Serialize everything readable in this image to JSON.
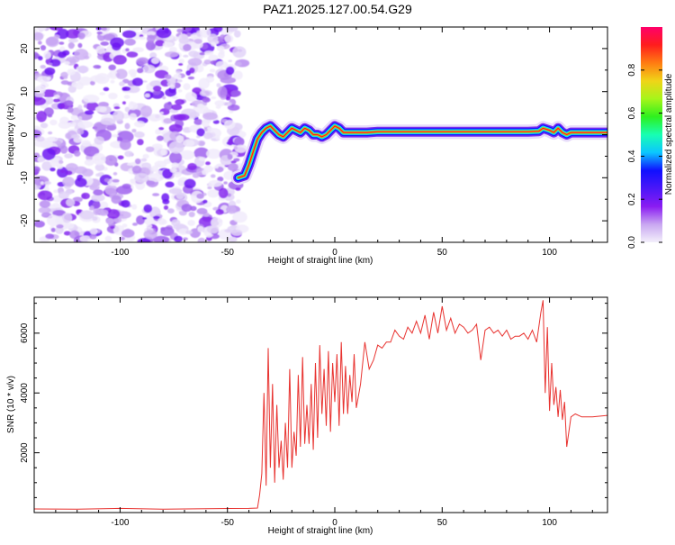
{
  "page": {
    "title": "PAZ1.2025.127.00.54.G29"
  },
  "colors": {
    "snr_line": "#e8322f",
    "axis": "#000000",
    "colorbar": [
      "#f3f0fb",
      "#c9a7f1",
      "#8a1cf2",
      "#4b17f8",
      "#1010ff",
      "#0bc6ff",
      "#18ffb2",
      "#2ef01e",
      "#a6f51a",
      "#f0d418",
      "#ff7b12",
      "#ff1d1d",
      "#ff006a"
    ]
  },
  "chart_data": [
    {
      "type": "heatmap",
      "xlabel": "Height of straight line (km)",
      "ylabel": "Frequency (Hz)",
      "xlim": [
        -140,
        127
      ],
      "ylim": [
        -25,
        25
      ],
      "x_ticks": [
        -100,
        -50,
        0,
        50,
        100
      ],
      "x_tick_labels": [
        "-100",
        "-50",
        "0",
        "50",
        "100"
      ],
      "y_ticks": [
        -20,
        -10,
        0,
        10,
        20
      ],
      "y_tick_labels": [
        "-20",
        "-10",
        "0",
        "10",
        "20"
      ],
      "noise_region_x": [
        -140,
        -43
      ],
      "ridge": {
        "x": [
          -45,
          -42,
          -40,
          -38,
          -36,
          -34,
          -32,
          -30,
          -28,
          -26,
          -24,
          -22,
          -20,
          -18,
          -16,
          -14,
          -12,
          -10,
          -8,
          -6,
          -4,
          -2,
          0,
          2,
          4,
          6,
          8,
          10,
          15,
          20,
          30,
          40,
          50,
          60,
          70,
          80,
          90,
          95,
          97,
          100,
          102,
          104,
          106,
          108,
          110,
          115,
          120,
          127
        ],
        "y": [
          -10,
          -9.5,
          -7,
          -4,
          -1,
          0.5,
          1.5,
          2,
          1,
          0,
          -0.5,
          0.5,
          1.5,
          1,
          0.5,
          1.5,
          1,
          0,
          0,
          -0.5,
          0,
          1,
          2,
          1.5,
          0.5,
          0.5,
          0.5,
          0.5,
          0.5,
          0.7,
          0.7,
          0.7,
          0.7,
          0.7,
          0.7,
          0.7,
          0.7,
          0.8,
          1.5,
          1,
          0.5,
          1.5,
          0.5,
          0,
          0.5,
          0.5,
          0.5,
          0.5
        ]
      },
      "colorbar": {
        "label": "Normalized spectral amplitude",
        "range": [
          0,
          1
        ],
        "ticks": [
          0.0,
          0.2,
          0.4,
          0.6,
          0.8
        ],
        "tick_labels": [
          "0.0",
          "0.2",
          "0.4",
          "0.6",
          "0.8"
        ]
      }
    },
    {
      "type": "line",
      "xlabel": "Height of straight line (km)",
      "ylabel": "SNR (10 * v/v)",
      "xlim": [
        -140,
        127
      ],
      "ylim": [
        0,
        7200
      ],
      "x_ticks": [
        -100,
        -50,
        0,
        50,
        100
      ],
      "x_tick_labels": [
        "-100",
        "-50",
        "0",
        "50",
        "100"
      ],
      "y_ticks": [
        2000,
        4000,
        6000
      ],
      "y_tick_labels": [
        "2000",
        "4000",
        "6000"
      ],
      "series": [
        {
          "x": [
            -140,
            -120,
            -100,
            -80,
            -60,
            -40,
            -36,
            -35,
            -34,
            -33,
            -32,
            -31,
            -30,
            -29,
            -28,
            -27,
            -26,
            -25,
            -24,
            -23,
            -22,
            -21,
            -20,
            -19,
            -18,
            -17,
            -16,
            -15,
            -14,
            -13,
            -12,
            -11,
            -10,
            -9,
            -8,
            -7,
            -6,
            -5,
            -4,
            -3,
            -2,
            -1,
            0,
            1,
            2,
            3,
            4,
            5,
            6,
            7,
            8,
            9,
            10,
            12,
            14,
            16,
            18,
            20,
            22,
            24,
            26,
            28,
            30,
            32,
            34,
            36,
            38,
            40,
            42,
            44,
            46,
            48,
            50,
            52,
            54,
            56,
            58,
            60,
            62,
            64,
            66,
            68,
            70,
            72,
            74,
            76,
            78,
            80,
            82,
            84,
            86,
            88,
            90,
            92,
            94,
            96,
            97,
            98,
            99,
            100,
            101,
            102,
            103,
            104,
            105,
            106,
            107,
            108,
            110,
            112,
            115,
            120,
            127
          ],
          "y": [
            120,
            110,
            140,
            110,
            130,
            140,
            150,
            600,
            1300,
            4000,
            900,
            5500,
            1500,
            4300,
            1000,
            3600,
            1500,
            2400,
            1100,
            3000,
            1500,
            4800,
            1500,
            2700,
            1900,
            4600,
            2200,
            5200,
            2300,
            3600,
            2300,
            4300,
            2100,
            5000,
            2500,
            5600,
            3300,
            4800,
            2900,
            5400,
            2700,
            5000,
            3700,
            5300,
            2900,
            5700,
            3300,
            4900,
            3300,
            4600,
            3700,
            5300,
            3500,
            4300,
            5700,
            4800,
            5100,
            5600,
            5500,
            5700,
            5700,
            6100,
            5900,
            5800,
            6200,
            6000,
            6400,
            6000,
            6600,
            5800,
            6700,
            6000,
            6900,
            6100,
            6500,
            6000,
            6300,
            6200,
            6000,
            6100,
            6300,
            5100,
            6100,
            6200,
            6000,
            6100,
            5900,
            6100,
            5800,
            5900,
            5900,
            6000,
            5800,
            6100,
            5700,
            6700,
            7100,
            4000,
            6200,
            3400,
            5000,
            3600,
            4200,
            3200,
            4100,
            3100,
            3700,
            2200,
            3200,
            3300,
            3200,
            3200,
            3250
          ]
        }
      ]
    }
  ]
}
